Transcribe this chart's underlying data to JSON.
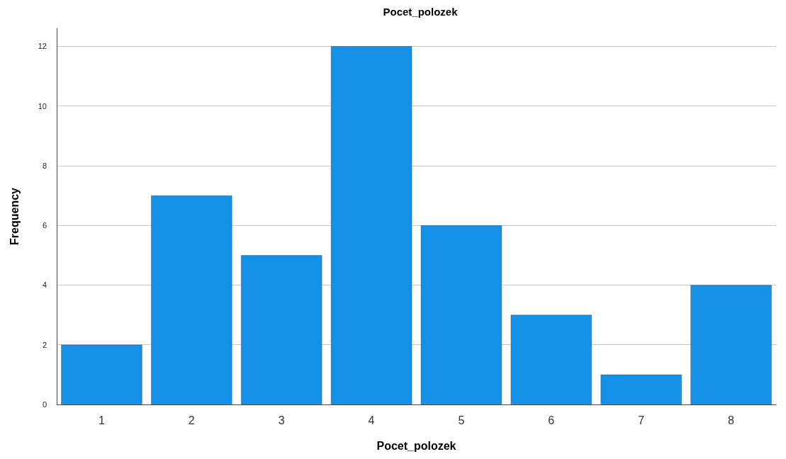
{
  "chart_data": {
    "type": "bar",
    "title": "Pocet_polozek",
    "xlabel": "Pocet_polozek",
    "ylabel": "Frequency",
    "categories": [
      "1",
      "2",
      "3",
      "4",
      "5",
      "6",
      "7",
      "8"
    ],
    "values": [
      2,
      7,
      5,
      12,
      6,
      3,
      1,
      4
    ],
    "color": "#1491e6",
    "ylim": [
      0,
      12.6
    ],
    "yticks": [
      0,
      2,
      4,
      6,
      8,
      10,
      12
    ],
    "grid": "y"
  }
}
